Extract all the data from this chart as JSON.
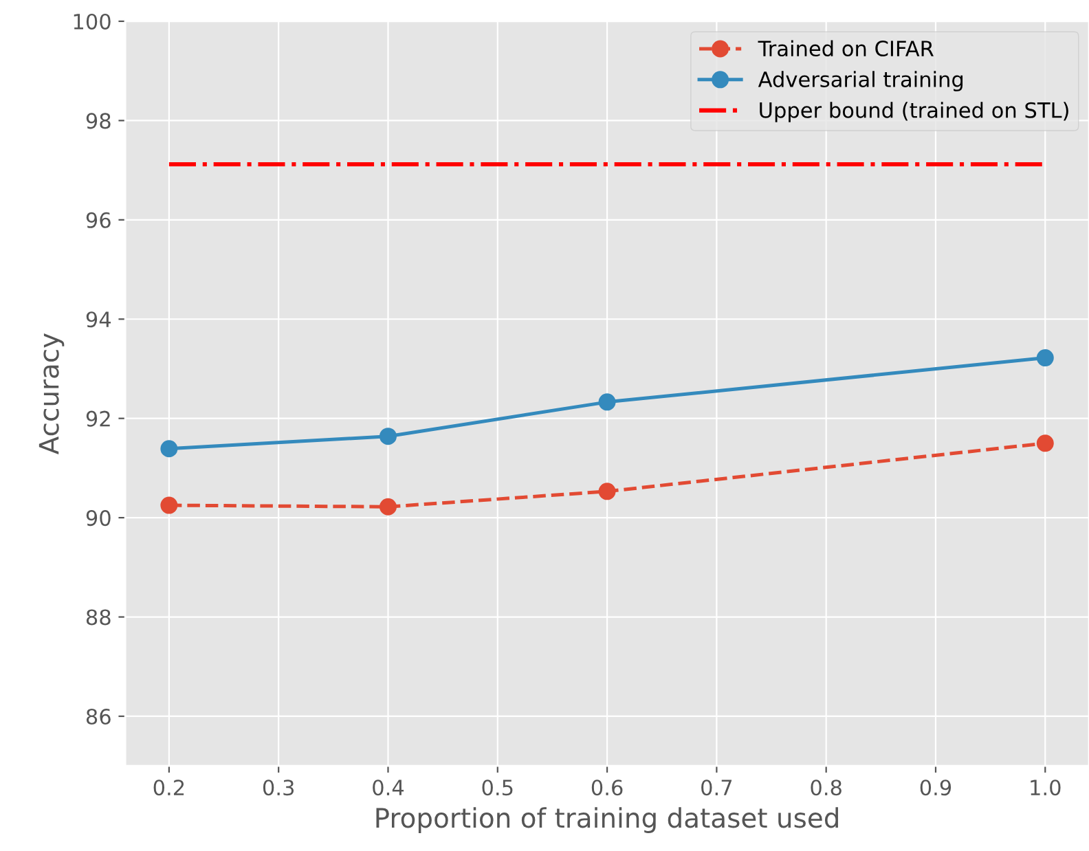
{
  "chart_data": {
    "type": "line",
    "xlabel": "Proportion of training dataset used",
    "ylabel": "Accuracy",
    "x": [
      0.2,
      0.4,
      0.6,
      1.0
    ],
    "series": [
      {
        "name": "Trained on CIFAR",
        "color": "#e24a33",
        "values": [
          90.25,
          90.22,
          90.53,
          91.5
        ],
        "marker": "circle",
        "line_style": "dashed"
      },
      {
        "name": "Adversarial training",
        "color": "#348abd",
        "values": [
          91.39,
          91.64,
          92.33,
          93.22
        ],
        "marker": "circle",
        "line_style": "solid"
      },
      {
        "name": "Upper bound (trained on STL)",
        "color": "#ff0000",
        "values": [
          97.12,
          97.12
        ],
        "x": [
          0.2,
          1.0
        ],
        "marker": "none",
        "line_style": "dashdot"
      }
    ],
    "xlim": [
      0.16,
      1.04
    ],
    "ylim": [
      85,
      100
    ],
    "xticks": [
      0.2,
      0.3,
      0.4,
      0.5,
      0.6,
      0.7,
      0.8,
      0.9,
      {
        "value": 1,
        "label": "1.0"
      }
    ],
    "yticks": [
      86,
      88,
      90,
      92,
      94,
      96,
      98,
      100
    ],
    "grid": true,
    "legend": "top right"
  }
}
